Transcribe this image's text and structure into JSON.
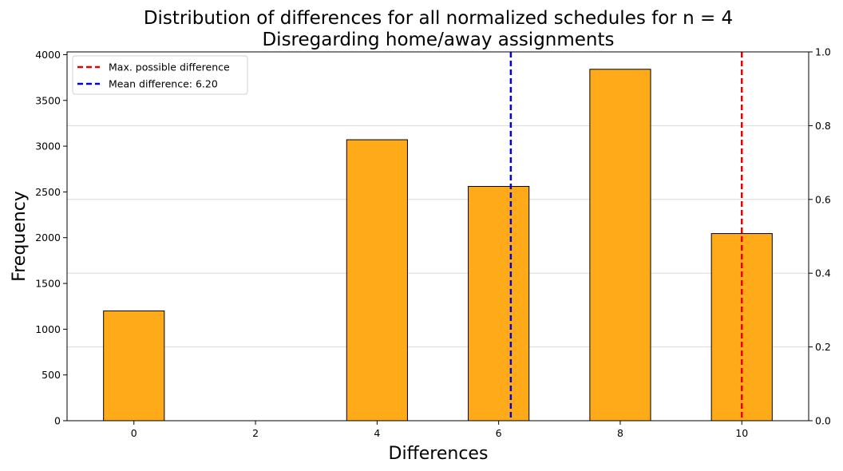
{
  "chart_data": {
    "type": "bar",
    "title": "Distribution of differences for all normalized schedules for n = 4",
    "subtitle": "Disregarding home/away assignments",
    "xlabel": "Differences",
    "ylabel": "Frequency",
    "x": [
      0,
      4,
      6,
      8,
      10
    ],
    "values": [
      1200,
      3070,
      2560,
      3840,
      2045
    ],
    "bar_width": 1.0,
    "bar_color": "#ffab19",
    "bar_edge_color": "#000000",
    "xlim": [
      -1.1,
      11.1
    ],
    "ylim": [
      0,
      4030
    ],
    "x_ticks": [
      "0",
      "2",
      "4",
      "6",
      "8",
      "10"
    ],
    "y_ticks": [
      "0",
      "500",
      "1000",
      "1500",
      "2000",
      "2500",
      "3000",
      "3500",
      "4000"
    ],
    "y2lim": [
      0,
      1
    ],
    "y2_ticks": [
      "0.0",
      "0.2",
      "0.4",
      "0.6",
      "0.8",
      "1.0"
    ],
    "grid": "horizontal, secondary axis",
    "reference_lines": [
      {
        "label": "Max. possible difference",
        "x": 10,
        "color": "#e60000",
        "style": "dashed"
      },
      {
        "label": "Mean difference: 6.20",
        "x": 6.2,
        "color": "#0000dd",
        "style": "dashed"
      }
    ],
    "legend_position": "top-left"
  }
}
